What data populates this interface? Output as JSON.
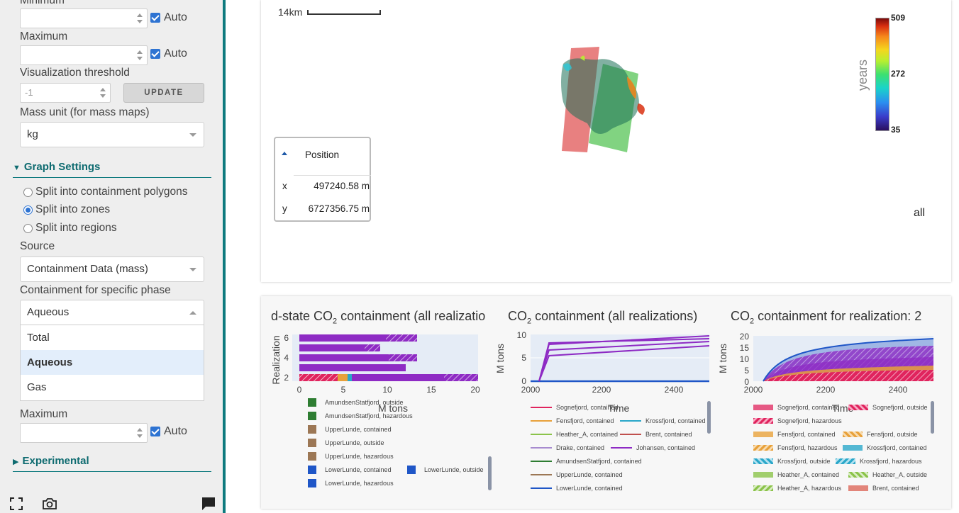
{
  "sidebar": {
    "minimum_label": "Minimum",
    "maximum_label": "Maximum",
    "auto_label": "Auto",
    "threshold_label": "Visualization threshold",
    "threshold_value": "-1",
    "update_label": "UPDATE",
    "mass_unit_label": "Mass unit (for mass maps)",
    "mass_unit_value": "kg",
    "graph_settings_label": "Graph Settings",
    "radio_options": [
      "Split into containment polygons",
      "Split into zones",
      "Split into regions"
    ],
    "source_label": "Source",
    "source_value": "Containment Data (mass)",
    "phase_label": "Containment for specific phase",
    "phase_value": "Aqueous",
    "phase_options": [
      "Total",
      "Aqueous",
      "Gas"
    ],
    "maximum2_label": "Maximum",
    "experimental_label": "Experimental"
  },
  "map": {
    "scale_label": "14km",
    "position_title": "Position",
    "x_label": "x",
    "x_value": "497240.58 m",
    "y_label": "y",
    "y_value": "6727356.75 m",
    "colorbar_title": "years",
    "colorbar_ticks": [
      "509",
      "272",
      "35"
    ],
    "realization_label": "all",
    "colors": {
      "red_polygon": "#e05555",
      "green_polygon": "#3dbb3d"
    }
  },
  "graphs": {
    "g1_title_prefix": "d-state CO",
    "g1_title_suffix": " containment (all realizatio",
    "g2_title_prefix": "CO",
    "g2_title_suffix": " containment (all realizations)",
    "g3_title_prefix": "CO",
    "g3_title_suffix": " containment for realization: 2",
    "sub2": "2",
    "g1_ylabel": "Realization",
    "g1_xlabel": "M tons",
    "g2_ylabel": "M tons",
    "g2_xlabel": "Time",
    "g3_ylabel": "M tons",
    "g3_xlabel": "Time",
    "g1_xticks": [
      "0",
      "5",
      "10",
      "15",
      "20"
    ],
    "g1_yticks": [
      "6",
      "4",
      "2"
    ],
    "g2_xticks": [
      "2000",
      "2200",
      "2400"
    ],
    "g2_yticks": [
      "10",
      "5",
      "0"
    ],
    "g3_xticks": [
      "2000",
      "2200",
      "2400"
    ],
    "g3_yticks": [
      "20",
      "15",
      "10",
      "5",
      "0"
    ],
    "legend1": [
      {
        "label": "AmundsenStatfjord, outside",
        "color": "#2e7d32",
        "hatch": true
      },
      {
        "label": "AmundsenStatfjord, hazardous",
        "color": "#2e7d32",
        "hatch": true
      },
      {
        "label": "UpperLunde, contained",
        "color": "#9c7755",
        "hatch": false
      },
      {
        "label": "UpperLunde, outside",
        "color": "#9c7755",
        "hatch": true
      },
      {
        "label": "UpperLunde, hazardous",
        "color": "#9c7755",
        "hatch": true
      },
      {
        "label": "LowerLunde, contained",
        "color": "#1f56c7",
        "hatch": false
      },
      {
        "label": "LowerLunde, outside",
        "color": "#1f56c7",
        "hatch": true
      },
      {
        "label": "LowerLunde, hazardous",
        "color": "#1f56c7",
        "hatch": true
      }
    ],
    "legend2": [
      {
        "label": "Sognefjord, contained",
        "color": "#e0245e"
      },
      {
        "label": "Fensfjord, contained",
        "color": "#e8a13a"
      },
      {
        "label": "Krossfjord, contained",
        "color": "#2aa7c9"
      },
      {
        "label": "Heather_A, contained",
        "color": "#8bc34a"
      },
      {
        "label": "Brent, contained",
        "color": "#c0504d"
      },
      {
        "label": "Drake, contained",
        "color": "#a78bcf"
      },
      {
        "label": "Johansen, contained",
        "color": "#8e2bc4"
      },
      {
        "label": "AmundsenStatfjord, contained",
        "color": "#2e7d32"
      },
      {
        "label": "UpperLunde, contained",
        "color": "#9c7755"
      },
      {
        "label": "LowerLunde, contained",
        "color": "#1f56c7"
      }
    ],
    "legend3": [
      {
        "label": "Sognefjord, contained",
        "color": "#e0245e",
        "hatch": false
      },
      {
        "label": "Sognefjord, outside",
        "color": "#e0245e",
        "hatch": true
      },
      {
        "label": "Sognefjord, hazardous",
        "color": "#e0245e",
        "hatch": true
      },
      {
        "label": "Fensfjord, contained",
        "color": "#e8a13a",
        "hatch": false
      },
      {
        "label": "Fensfjord, outside",
        "color": "#e8a13a",
        "hatch": true
      },
      {
        "label": "Fensfjord, hazardous",
        "color": "#e8a13a",
        "hatch": true
      },
      {
        "label": "Krossfjord, contained",
        "color": "#2aa7c9",
        "hatch": false
      },
      {
        "label": "Krossfjord, outside",
        "color": "#2aa7c9",
        "hatch": true
      },
      {
        "label": "Krossfjord, hazardous",
        "color": "#2aa7c9",
        "hatch": true
      },
      {
        "label": "Heather_A, contained",
        "color": "#8bc34a",
        "hatch": false
      },
      {
        "label": "Heather_A, outside",
        "color": "#8bc34a",
        "hatch": true
      },
      {
        "label": "Heather_A, hazardous",
        "color": "#8bc34a",
        "hatch": true
      },
      {
        "label": "Brent, contained",
        "color": "#e2857a",
        "hatch": false
      }
    ]
  },
  "icons": {
    "fullscreen": "fullscreen-icon",
    "camera": "camera-icon",
    "comment": "comment-icon"
  }
}
